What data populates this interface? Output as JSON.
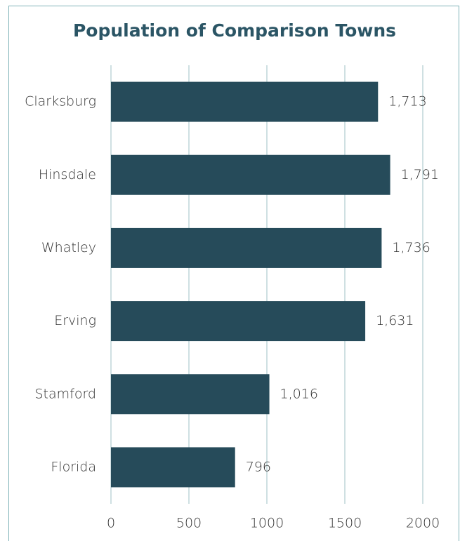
{
  "chart_data": {
    "type": "barh",
    "title": "Population of Comparison Towns",
    "categories": [
      "Clarksburg",
      "Hinsdale",
      "Whatley",
      "Erving",
      "Stamford",
      "Florida"
    ],
    "values": [
      1713,
      1791,
      1736,
      1631,
      1016,
      796
    ],
    "value_labels": [
      "1,713",
      "1,791",
      "1,736",
      "1,631",
      "1,016",
      "796"
    ],
    "color": "#264b5a",
    "xlim": [
      0,
      2000
    ],
    "xticks": [
      0,
      500,
      1000,
      1500,
      2000
    ],
    "grid": true
  }
}
